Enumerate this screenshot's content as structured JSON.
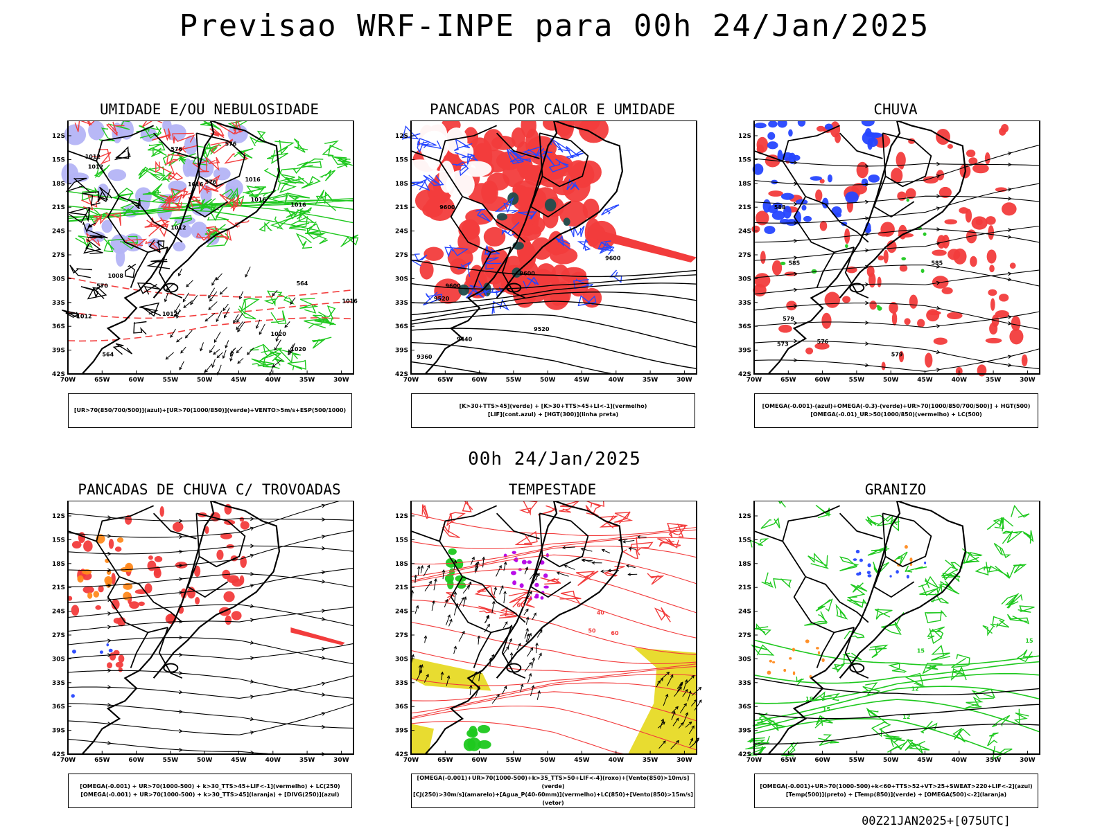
{
  "header": {
    "title": "Previsao WRF-INPE  para 00h 24/Jan/2025",
    "subtitle": "00h 24/Jan/2025",
    "footer": "00Z21JAN2025+[075UTC]"
  },
  "axes": {
    "lat_labels": [
      "12S",
      "15S",
      "18S",
      "21S",
      "24S",
      "27S",
      "30S",
      "33S",
      "36S",
      "39S",
      "42S"
    ],
    "lon_labels": [
      "70W",
      "65W",
      "60W",
      "55W",
      "50W",
      "45W",
      "40W",
      "35W",
      "30W"
    ]
  },
  "panels": [
    {
      "id": "umidade",
      "title": "UMIDADE E/OU NEBULOSIDADE",
      "legend": [
        "[UR>70(850/700/500)](azul)+[UR>70(1000/850)](verde)+VENTO>5m/s+ESP(500/1000)"
      ],
      "contour_labels": [
        "1012",
        "1012",
        "1016",
        "1016",
        "1016",
        "1016",
        "1012",
        "1008",
        "1012",
        "1020",
        "1020",
        "1016",
        "1012",
        "576",
        "576",
        "576",
        "570",
        "564",
        "564"
      ]
    },
    {
      "id": "pancadas-calor",
      "title": "PANCADAS POR CALOR E UMIDADE",
      "legend": [
        "[K>30+TTS>45](verde) + [K>30+TTS>45+LI<-1](vermelho)",
        "[LIF](cont.azul) + [HGT(300)](linha preta)"
      ],
      "contour_labels": [
        "9600",
        "9600",
        "9600",
        "9520",
        "9520",
        "9440",
        "9360",
        "9600"
      ]
    },
    {
      "id": "chuva",
      "title": "CHUVA",
      "legend": [
        "[OMEGA(-0.001)-(azul)+OMEGA(-0.3)-(verde)+UR>70(1000/850/700/500)] + HGT(500)",
        "[OMEGA(-0.01)_UR>50(1000/850)(vermelho) + LC(500)"
      ],
      "contour_labels": [
        "588",
        "585",
        "579",
        "576",
        "573",
        "579",
        "585"
      ]
    },
    {
      "id": "trovoadas",
      "title": "PANCADAS DE CHUVA C/ TROVOADAS",
      "legend": [
        "[OMEGA(-0.001) + UR>70(1000-500) + k>30_TTS>45+LIF<-1](vermelho) + LC(250)",
        "[OMEGA(-0.001) + UR>70(1000-500) + k>30_TTS>45](laranja) + [DIVG(250)](azul)"
      ],
      "contour_labels": []
    },
    {
      "id": "tempestade",
      "title": "TEMPESTADE",
      "legend": [
        "[OMEGA(-0.001)+UR>70(1000-500)+k>35_TTS>50+LIF<-4](roxo)+[Vento(850)>10m/s](verde)",
        "[CJ(250)>30m/s](amarelo)+[Agua_P(40-60mm)](vermelho)+LC(850)+[Vento(850)>15m/s](vetor)"
      ],
      "contour_labels": [
        "60",
        "50",
        "40",
        "60"
      ]
    },
    {
      "id": "granizo",
      "title": "GRANIZO",
      "legend": [
        "[OMEGA(-0.001)+UR>70(1000-500)+k<60+TTS>52+VT>25+SWEAT>220+LIF<-2](azul)",
        "[Temp(500)](preto) + [Temp(850)](verde) + [OMEGA(500)<-2](laranja)"
      ],
      "contour_labels": [
        "15",
        "12",
        "18",
        "15",
        "12",
        "15"
      ]
    }
  ],
  "colors": {
    "frame": "#000000",
    "red": "#f23c3c",
    "green": "#1ec81e",
    "blue": "#2646ff",
    "lavender": "#b4b4f5",
    "orange": "#ff8a1e",
    "yellow": "#e8dc30",
    "purple": "#b400e6",
    "darkteal": "#1f4d4d"
  }
}
